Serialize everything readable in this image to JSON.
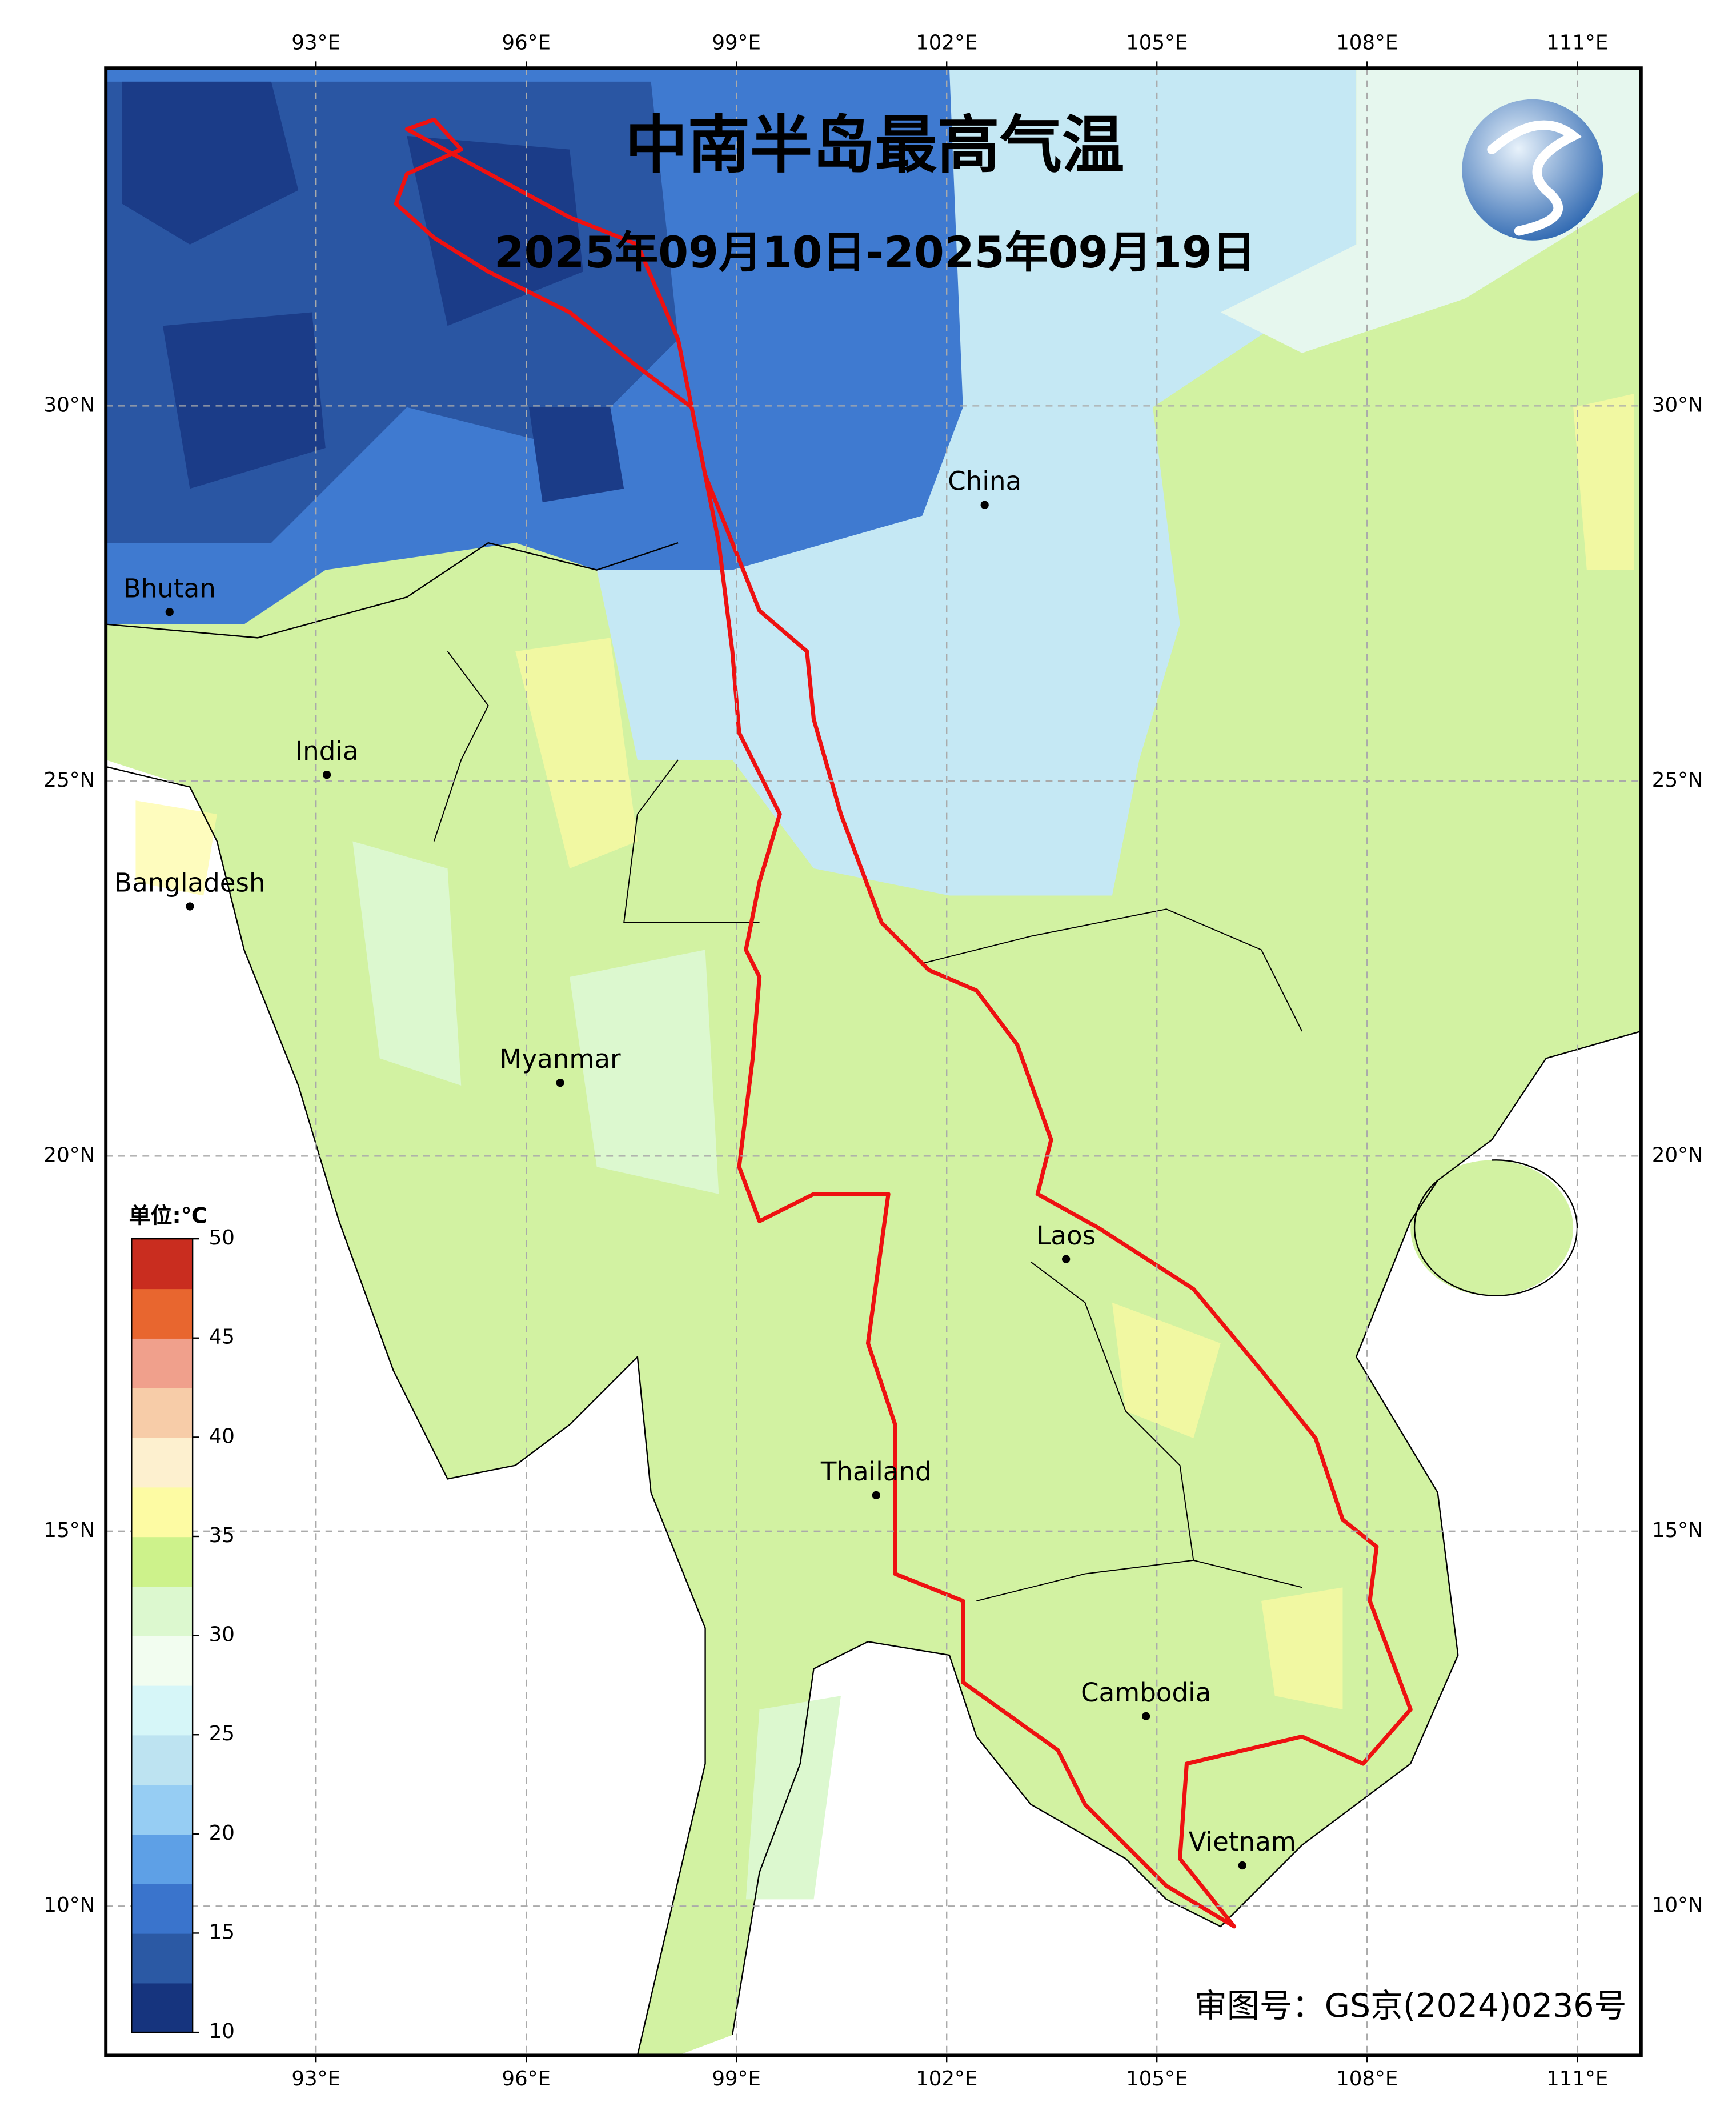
{
  "title": "中南半岛最高气温",
  "subtitle": "2025年09月10日-2025年09月19日",
  "map": {
    "lon_ticks": [
      {
        "value": 93,
        "label": "93°E"
      },
      {
        "value": 96,
        "label": "96°E"
      },
      {
        "value": 99,
        "label": "99°E"
      },
      {
        "value": 102,
        "label": "102°E"
      },
      {
        "value": 105,
        "label": "105°E"
      },
      {
        "value": 108,
        "label": "108°E"
      },
      {
        "value": 111,
        "label": "111°E"
      }
    ],
    "lat_ticks": [
      {
        "value": 30,
        "label": "30°N"
      },
      {
        "value": 25,
        "label": "25°N"
      },
      {
        "value": 20,
        "label": "20°N"
      },
      {
        "value": 15,
        "label": "15°N"
      },
      {
        "value": 10,
        "label": "10°N"
      }
    ],
    "places": [
      "China",
      "Bhutan",
      "India",
      "Bangladesh",
      "Myanmar",
      "Laos",
      "Thailand",
      "Cambodia",
      "Vietnam"
    ]
  },
  "colorbar": {
    "unit": "单位:℃",
    "range": [
      10,
      50
    ],
    "ticks": [
      10,
      15,
      20,
      25,
      30,
      35,
      40,
      45,
      50
    ],
    "colors": [
      "#16347e",
      "#2b59a4",
      "#3a74cc",
      "#5ea0e6",
      "#96cdf3",
      "#bde3f1",
      "#d6f6f8",
      "#f2fdf0",
      "#dcf8cf",
      "#cdf28b",
      "#fdfba3",
      "#fdf0cf",
      "#f7cca8",
      "#f0a08c",
      "#e8662f",
      "#c92d1f"
    ]
  },
  "approval": "审图号：GS京(2024)0236号"
}
